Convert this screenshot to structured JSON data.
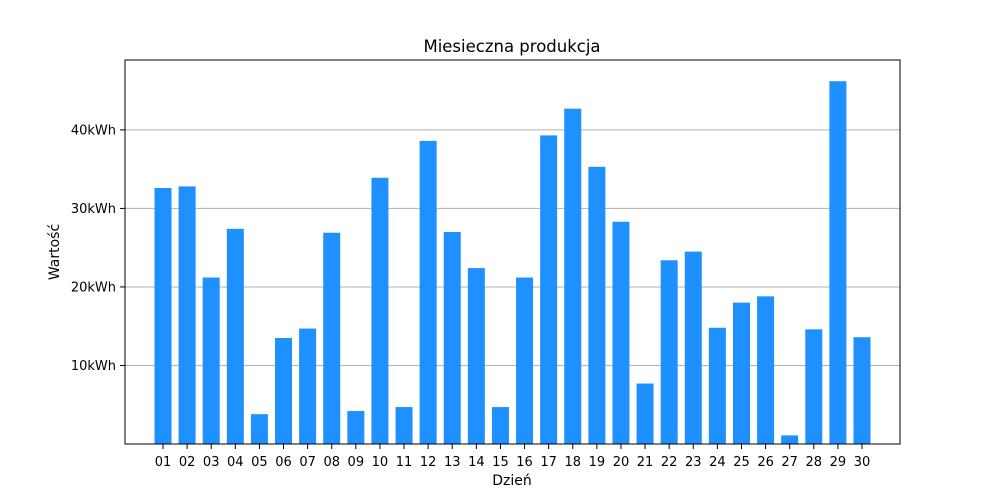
{
  "chart_data": {
    "type": "bar",
    "title": "Miesieczna produkcja",
    "xlabel": "Dzień",
    "ylabel": "Wartość",
    "categories": [
      "01",
      "02",
      "03",
      "04",
      "05",
      "06",
      "07",
      "08",
      "09",
      "10",
      "11",
      "12",
      "13",
      "14",
      "15",
      "16",
      "17",
      "18",
      "19",
      "20",
      "21",
      "22",
      "23",
      "24",
      "25",
      "26",
      "27",
      "28",
      "29",
      "30"
    ],
    "values": [
      32600,
      32800,
      21200,
      27400,
      3800,
      13500,
      14700,
      26900,
      4200,
      33900,
      4700,
      38600,
      27000,
      22400,
      4700,
      21200,
      39300,
      42700,
      35300,
      28300,
      7700,
      23400,
      24500,
      14800,
      18000,
      18800,
      1100,
      14600,
      46200,
      13600
    ],
    "ylim": [
      0,
      48900
    ],
    "yticks": [
      10000,
      20000,
      30000,
      40000
    ],
    "ytick_labels": [
      "10kWh",
      "20kWh",
      "30kWh",
      "40kWh"
    ],
    "grid": "y",
    "bar_color": "#1e90ff"
  }
}
